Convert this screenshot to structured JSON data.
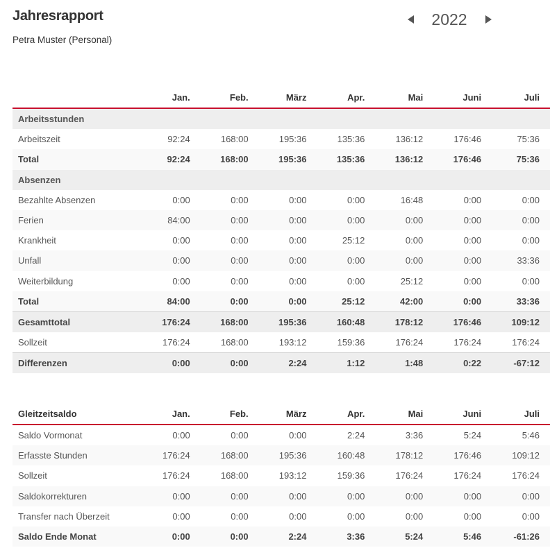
{
  "header": {
    "title": "Jahresrapport",
    "subtitle": "Petra Muster  (Personal)",
    "year": "2022"
  },
  "months": [
    "Jan.",
    "Feb.",
    "März",
    "Apr.",
    "Mai",
    "Juni",
    "Juli"
  ],
  "report": {
    "sections": [
      {
        "title": "Arbeitsstunden",
        "rows": [
          {
            "label": "Arbeitszeit",
            "values": [
              "92:24",
              "168:00",
              "195:36",
              "135:36",
              "136:12",
              "176:46",
              "75:36"
            ]
          }
        ],
        "total": {
          "label": "Total",
          "values": [
            "92:24",
            "168:00",
            "195:36",
            "135:36",
            "136:12",
            "176:46",
            "75:36"
          ]
        }
      },
      {
        "title": "Absenzen",
        "rows": [
          {
            "label": "Bezahlte Absenzen",
            "values": [
              "0:00",
              "0:00",
              "0:00",
              "0:00",
              "16:48",
              "0:00",
              "0:00"
            ]
          },
          {
            "label": "Ferien",
            "values": [
              "84:00",
              "0:00",
              "0:00",
              "0:00",
              "0:00",
              "0:00",
              "0:00"
            ]
          },
          {
            "label": "Krankheit",
            "values": [
              "0:00",
              "0:00",
              "0:00",
              "25:12",
              "0:00",
              "0:00",
              "0:00"
            ]
          },
          {
            "label": "Unfall",
            "values": [
              "0:00",
              "0:00",
              "0:00",
              "0:00",
              "0:00",
              "0:00",
              "33:36"
            ]
          },
          {
            "label": "Weiterbildung",
            "values": [
              "0:00",
              "0:00",
              "0:00",
              "0:00",
              "25:12",
              "0:00",
              "0:00"
            ]
          }
        ],
        "total": {
          "label": "Total",
          "values": [
            "84:00",
            "0:00",
            "0:00",
            "25:12",
            "42:00",
            "0:00",
            "33:36"
          ]
        }
      }
    ],
    "gesamttotal": {
      "label": "Gesamttotal",
      "values": [
        "176:24",
        "168:00",
        "195:36",
        "160:48",
        "178:12",
        "176:46",
        "109:12"
      ]
    },
    "sollzeit": {
      "label": "Sollzeit",
      "values": [
        "176:24",
        "168:00",
        "193:12",
        "159:36",
        "176:24",
        "176:24",
        "176:24"
      ]
    },
    "differenzen": {
      "label": "Differenzen",
      "values": [
        "0:00",
        "0:00",
        "2:24",
        "1:12",
        "1:48",
        "0:22",
        "-67:12"
      ]
    }
  },
  "gleitzeit": {
    "title": "Gleitzeitsaldo",
    "rows": [
      {
        "label": "Saldo Vormonat",
        "values": [
          "0:00",
          "0:00",
          "0:00",
          "2:24",
          "3:36",
          "5:24",
          "5:46"
        ]
      },
      {
        "label": "Erfasste Stunden",
        "values": [
          "176:24",
          "168:00",
          "195:36",
          "160:48",
          "178:12",
          "176:46",
          "109:12"
        ]
      },
      {
        "label": "Sollzeit",
        "values": [
          "176:24",
          "168:00",
          "193:12",
          "159:36",
          "176:24",
          "176:24",
          "176:24"
        ]
      },
      {
        "label": "Saldokorrekturen",
        "values": [
          "0:00",
          "0:00",
          "0:00",
          "0:00",
          "0:00",
          "0:00",
          "0:00"
        ]
      },
      {
        "label": "Transfer nach Überzeit",
        "values": [
          "0:00",
          "0:00",
          "0:00",
          "0:00",
          "0:00",
          "0:00",
          "0:00"
        ]
      }
    ],
    "end": {
      "label": "Saldo Ende Monat",
      "values": [
        "0:00",
        "0:00",
        "2:24",
        "3:36",
        "5:24",
        "5:46",
        "-61:26"
      ]
    }
  }
}
